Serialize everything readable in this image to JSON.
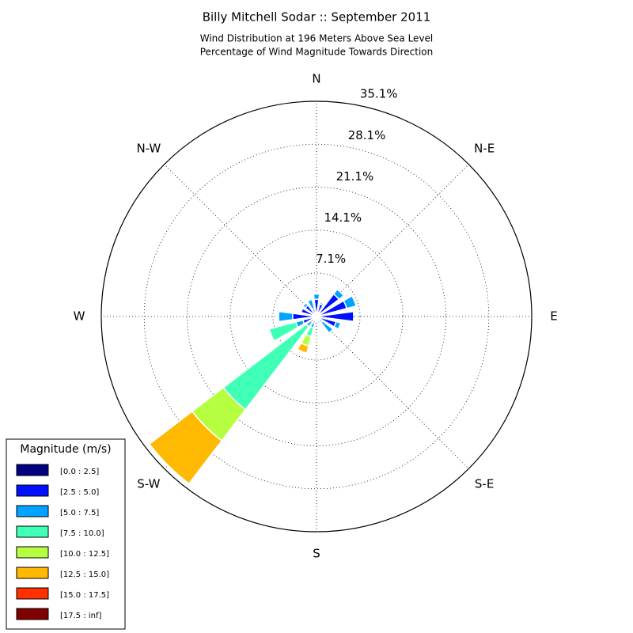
{
  "chart_data": {
    "type": "windrose",
    "title": "Billy Mitchell Sodar :: September 2011",
    "subtitle": [
      "Wind Distribution at 196 Meters Above Sea Level",
      "Percentage of Wind Magnitude Towards Direction"
    ],
    "categories": [
      "N",
      null,
      "N-E",
      null,
      "E",
      null,
      "S-E",
      null,
      "S",
      null,
      "S-W",
      null,
      "W",
      null,
      "N-W",
      null
    ],
    "ylim": [
      0,
      35.1
    ],
    "yticks": [
      {
        "value": 7.1,
        "label": "7.1%"
      },
      {
        "value": 14.1,
        "label": "14.1%"
      },
      {
        "value": 21.1,
        "label": "21.1%"
      },
      {
        "value": 28.1,
        "label": "28.1%"
      },
      {
        "value": 35.1,
        "label": "35.1%"
      }
    ],
    "grid": true,
    "legend_title": "Magnitude (m/s)",
    "legend_position": "lower left",
    "series": [
      {
        "name": "[0.0 : 2.5]",
        "color": "#000080",
        "values": [
          0.3,
          0.3,
          0.3,
          0.3,
          0.3,
          0.3,
          0.2,
          0.2,
          0.2,
          0.3,
          0.3,
          0.5,
          0.5,
          0.4,
          0.3,
          0.3
        ]
      },
      {
        "name": "[2.5 : 5.0]",
        "color": "#0010ff",
        "values": [
          2.5,
          1.8,
          4.3,
          4.8,
          5.8,
          3.0,
          1.0,
          0.6,
          0.4,
          0.8,
          0.8,
          1.8,
          3.4,
          2.2,
          2.0,
          1.0
        ]
      },
      {
        "name": "[5.0 : 7.5]",
        "color": "#00a4ff",
        "values": [
          0.9,
          0.3,
          1.0,
          1.6,
          0,
          0.8,
          2.2,
          0.4,
          0.2,
          0.8,
          1.0,
          1.2,
          2.3,
          0.2,
          0.5,
          1.6
        ]
      },
      {
        "name": "[7.5 : 10.0]",
        "color": "#40ffb6",
        "values": [
          0,
          0,
          0,
          0,
          0,
          0,
          0,
          0,
          0.1,
          1.5,
          17.0,
          4.5,
          0,
          0,
          0,
          0
        ]
      },
      {
        "name": "[10.0 : 12.5]",
        "color": "#b6ff40",
        "values": [
          0,
          0,
          0,
          0,
          0,
          0,
          0,
          0,
          0,
          1.6,
          6.4,
          0,
          0,
          0,
          0,
          0
        ]
      },
      {
        "name": "[12.5 : 15.0]",
        "color": "#ffb900",
        "values": [
          0,
          0,
          0,
          0,
          0,
          0,
          0,
          0,
          0,
          1.2,
          8.8,
          0,
          0,
          0,
          0,
          0
        ]
      },
      {
        "name": "[15.0 : 17.5]",
        "color": "#ff3000",
        "values": [
          0,
          0,
          0,
          0,
          0,
          0,
          0,
          0,
          0,
          0,
          0,
          0,
          0,
          0,
          0,
          0
        ]
      },
      {
        "name": "[17.5 : inf]",
        "color": "#800000",
        "values": [
          0,
          0,
          0,
          0,
          0,
          0,
          0,
          0,
          0,
          0,
          0,
          0,
          0,
          0,
          0,
          0
        ]
      }
    ]
  }
}
